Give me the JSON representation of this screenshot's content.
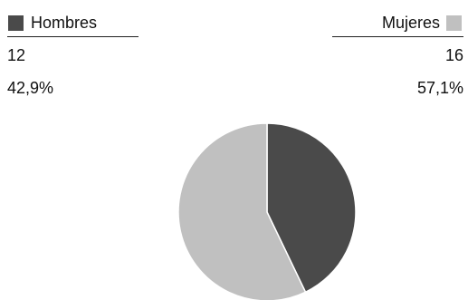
{
  "chart_data": {
    "type": "pie",
    "series": [
      {
        "name": "Hombres",
        "value": 12,
        "percent_label": "42,9%",
        "color": "#4a4a4a"
      },
      {
        "name": "Mujeres",
        "value": 16,
        "percent_label": "57,1%",
        "color": "#c0c0c0"
      }
    ],
    "slice_border_color": "#ffffff"
  },
  "legend": {
    "left": {
      "label": "Hombres",
      "value": "12",
      "percent": "42,9%"
    },
    "right": {
      "label": "Mujeres",
      "value": "16",
      "percent": "57,1%"
    }
  }
}
